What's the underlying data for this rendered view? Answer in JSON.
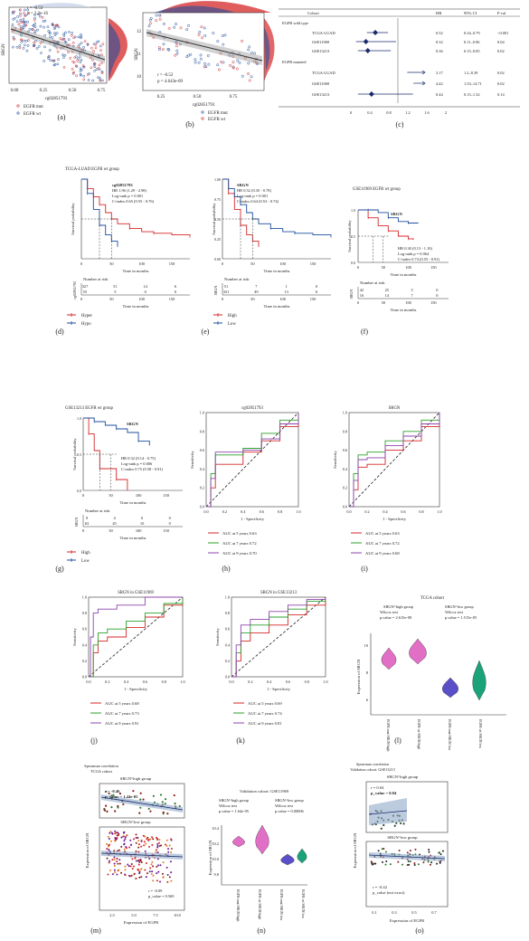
{
  "panel_labels": [
    "(a)",
    "(b)",
    "(c)",
    "(d)",
    "(e)",
    "(f)",
    "(g)",
    "(h)",
    "(i)",
    "(j)",
    "(k)",
    "(l)",
    "(m)",
    "(n)",
    "(o)"
  ],
  "colors": {
    "red": "#d62728",
    "blue": "#1f4e9c",
    "green": "#2ca02c",
    "purple": "#8e44ad",
    "navy": "#1a2b6b",
    "grey": "#666666"
  },
  "panel_a": {
    "ylabel": "SRGN",
    "xlabel": "cg02851793",
    "stats": [
      "r = -0.53",
      "p < 2.2e-16"
    ],
    "xticks": [
      "0.00",
      "0.25",
      "0.50",
      "0.75"
    ],
    "legend": [
      "EGFR mut",
      "EGFR wt"
    ]
  },
  "panel_b": {
    "ylabel": "SRGN",
    "xlabel": "cg02851793",
    "stats": [
      "r = -0.52",
      "p = 4.643e-09"
    ],
    "xticks": [
      "0.25",
      "0.50",
      "0.75"
    ],
    "yticks": [
      "10",
      "11",
      "12"
    ],
    "legend": [
      "EGFR mut",
      "EGFR wt"
    ]
  },
  "panel_c": {
    "header": [
      "Cohort",
      "HR",
      "95% CI",
      "P val"
    ],
    "groups": [
      "EGFR wild type",
      "EGFR mutated"
    ],
    "rows": [
      {
        "cohort": "TCGA-LUAD",
        "hr": "0.52",
        "ci": "0.34–0.79",
        "p": "<0.001"
      },
      {
        "cohort": "GSE11969",
        "hr": "0.32",
        "ci": "0.11–0.96",
        "p": "0.04"
      },
      {
        "cohort": "GSE13213",
        "hr": "0.36",
        "ci": "0.15–0.85",
        "p": "0.02"
      },
      {
        "cohort": "TCGA-LUAD",
        "hr": "3.17",
        "ci": "1.2–8.39",
        "p": "0.02"
      },
      {
        "cohort": "GSE11969",
        "hr": "4.42",
        "ci": "1.33–14.71",
        "p": "0.02"
      },
      {
        "cohort": "GSE13213",
        "hr": "0.44",
        "ci": "0.15–1.32",
        "p": "0.14"
      }
    ],
    "xticks": [
      "0",
      "0.4",
      "0.8",
      "1.2",
      "1.6",
      "2"
    ]
  },
  "panel_d": {
    "title": "TCGA-LUAD EGFR wt group",
    "name": "cg02851793",
    "ylabel": "Survival probability",
    "xlabel": "Time in months",
    "stats": [
      "HR 1.96 (1.29 - 2.98)",
      "Log-rank p = 0.001",
      "C-index 0.65 (0.55 - 0.76)"
    ],
    "risk_title": "Number at risk",
    "risk_label": "cg02851793",
    "risk": [
      [
        "327",
        "51",
        "14",
        "6"
      ],
      [
        "55",
        "5",
        "0",
        "0"
      ]
    ],
    "xticks": [
      "0",
      "50",
      "100",
      "150"
    ],
    "legend": [
      "Hyper",
      "Hypo"
    ]
  },
  "panel_e": {
    "name": "SRGN",
    "ylabel": "Survival probability",
    "xlabel": "Time in months",
    "stats": [
      "HR 0.52 (0.35 - 0.78)",
      "Log-rank p = 0.001",
      "C-index 0.64 (0.53 - 0.74)"
    ],
    "yticks": [
      "0.00",
      "0.25",
      "0.50",
      "0.75",
      "1.00"
    ],
    "risk_title": "Number at risk",
    "risk_label": "SRGN",
    "risk": [
      [
        "51",
        "7",
        "1",
        "0"
      ],
      [
        "331",
        "49",
        "13",
        "6"
      ]
    ],
    "xticks": [
      "0",
      "50",
      "100",
      "150"
    ],
    "legend": [
      "High",
      "Low"
    ]
  },
  "panel_f": {
    "title": "GSE11969 EGFR wt group",
    "name": "SRGN",
    "ylabel": "Survival probability",
    "xlabel": "Time in months",
    "stats": [
      "HR 0.30 (0.13 - 1.10)",
      "Log-rank p = 0.064",
      "C-index 0.74 (0.55 - 0.91)"
    ],
    "yticks": [
      "0.0",
      "0.5",
      "1.0"
    ],
    "risk_title": "Number at risk",
    "risk_label": "SRGN",
    "risk": [
      [
        "42",
        "25",
        "5",
        "0"
      ],
      [
        "16",
        "14",
        "7",
        "0"
      ]
    ],
    "xticks": [
      "0",
      "50",
      "100",
      "150"
    ]
  },
  "panel_g": {
    "title": "GSE13213 EGFR wt group",
    "name": "SRGN",
    "ylabel": "Survival probability",
    "xlabel": "Time in months",
    "stats": [
      "HR 0.32 (0.14 - 0.75)",
      "Log-rank p = 0.006",
      "C-index 0.75 (0.58 - 0.91)"
    ],
    "yticks": [
      "0.0",
      "0.5",
      "1.0"
    ],
    "risk_title": "Number at risk",
    "risk_label": "SRGN",
    "risk": [
      [
        "9",
        "4",
        "0",
        "0"
      ],
      [
        "63",
        "45",
        "10",
        "0"
      ]
    ],
    "xticks": [
      "0",
      "50",
      "100",
      "150"
    ],
    "legend": [
      "High",
      "Low"
    ]
  },
  "roc_common": {
    "xlabel": "1 - Specificity",
    "ylabel": "Sensitivity",
    "ticks": [
      "0.0",
      "0.2",
      "0.4",
      "0.6",
      "0.8",
      "1.0"
    ]
  },
  "panel_h": {
    "title": "cg02851793",
    "legend": [
      "AUC at 5 years 0.63",
      "AUC at 7 years 0.72",
      "AUC at 9 years 0.70"
    ]
  },
  "panel_i": {
    "title": "SRGN",
    "legend": [
      "AUC at 5 years 0.63",
      "AUC at 7 years 0.72",
      "AUC at 9 years 0.68"
    ]
  },
  "panel_j": {
    "title": "SRGN in GSE11969",
    "legend": [
      "AUC at 5 years 0.68",
      "AUC at 7 years 0.73",
      "AUC at 9 years 0.91"
    ]
  },
  "panel_k": {
    "title": "SRGN in GSE13213",
    "legend": [
      "AUC at 5 years 0.69",
      "AUC at 7 years 0.74",
      "AUC at 9 years 0.81"
    ]
  },
  "panel_l": {
    "title": "TCGA cohort",
    "g1": [
      "SRGN^high group",
      "Wilcox test",
      "p.value = 2.615e-08"
    ],
    "g2": [
      "SRGN^low group",
      "Wilcox test",
      "p.value = 1.515e-05"
    ],
    "ylabel": "Expression of SRGN",
    "yticks": [
      "6",
      "8",
      "10"
    ],
    "xcats": [
      "EGFR mut SRGN high",
      "EGFR wt SRGN high",
      "EGFR mut SRGN low",
      "EGFR wt SRGN low"
    ]
  },
  "panel_m": {
    "header": [
      "Spearman correlation",
      "TCGA cohort"
    ],
    "sub1": "SRGN^high group",
    "stats1": [
      "r = -0.46",
      "p_value = 1.44e-05"
    ],
    "sub2": "SRGN^low group",
    "stats2": [
      "r = -0.09",
      "p_value = 0.569"
    ],
    "ylabel": "Expression of SRGN",
    "xlabel": "Expression of EGFR",
    "xticks": [
      "2.5",
      "5.0",
      "7.5",
      "10.0"
    ]
  },
  "panel_n": {
    "title": "Validation cohort: GSE11969",
    "g1": [
      "SRGN^high group",
      "Wilcox test",
      "p.value = 1.64e-05"
    ],
    "g2": [
      "SRGN^low group",
      "Wilcox test",
      "p.value = 0.00006"
    ],
    "ylabel": "Expression of SRGN",
    "yticks": [
      "9.8",
      "10.0",
      "10.2",
      "10.4"
    ],
    "xcats": [
      "EGFR mut SRGN high",
      "EGFR wt SRGN high",
      "EGFR mut SRGN low",
      "EGFR wt SRGN low"
    ]
  },
  "panel_o": {
    "header": [
      "Spearman correlation",
      "Validation cohort: GSE13213"
    ],
    "sub1": "SRGN^high group",
    "stats1": [
      "r = 0.04",
      "p_value = 0.84"
    ],
    "sub2": "SRGN^low group",
    "stats2": [
      "r = -0.42",
      "p_value (not exact)"
    ],
    "ylabel": "Expression of SRGN",
    "xlabel": "Expression of EGFR",
    "xticks": [
      "0.1",
      "0.3",
      "0.5",
      "0.7"
    ]
  },
  "chart_data": [
    {
      "type": "scatter",
      "panel": "a",
      "xlabel": "cg02851793",
      "ylabel": "SRGN",
      "series": [
        {
          "name": "EGFR mut"
        },
        {
          "name": "EGFR wt"
        }
      ],
      "trend_slope": "negative"
    },
    {
      "type": "scatter",
      "panel": "b",
      "xlabel": "cg02851793",
      "ylabel": "SRGN",
      "series": [
        {
          "name": "EGFR mut"
        },
        {
          "name": "EGFR wt"
        }
      ],
      "trend_slope": "negative"
    },
    {
      "type": "table",
      "panel": "c",
      "columns": [
        "Cohort",
        "HR",
        "95% CI",
        "P val"
      ],
      "hr": [
        0.52,
        0.32,
        0.36,
        3.17,
        4.42,
        0.44
      ],
      "ci_low": [
        0.34,
        0.11,
        0.15,
        1.2,
        1.33,
        0.15
      ],
      "ci_high": [
        0.79,
        0.96,
        0.85,
        8.39,
        14.71,
        1.32
      ]
    },
    {
      "type": "line",
      "panel": "d",
      "series": [
        {
          "name": "Hyper",
          "x": [
            0,
            10,
            20,
            30,
            40,
            50,
            60,
            80,
            100,
            120,
            150,
            180
          ],
          "y": [
            1,
            0.88,
            0.78,
            0.68,
            0.58,
            0.5,
            0.44,
            0.38,
            0.34,
            0.32,
            0.3,
            0.28
          ]
        },
        {
          "name": "Hypo",
          "x": [
            0,
            10,
            20,
            30,
            40,
            50,
            60
          ],
          "y": [
            1,
            0.82,
            0.62,
            0.42,
            0.3,
            0.22,
            0.15
          ]
        }
      ]
    },
    {
      "type": "line",
      "panel": "e",
      "series": [
        {
          "name": "High",
          "x": [
            0,
            10,
            20,
            30,
            40,
            50,
            60
          ],
          "y": [
            1,
            0.82,
            0.62,
            0.42,
            0.3,
            0.22,
            0.15
          ]
        },
        {
          "name": "Low",
          "x": [
            0,
            10,
            20,
            30,
            40,
            50,
            60,
            80,
            100,
            120,
            150,
            180
          ],
          "y": [
            1,
            0.88,
            0.78,
            0.68,
            0.58,
            0.5,
            0.44,
            0.38,
            0.34,
            0.32,
            0.3,
            0.28
          ]
        }
      ]
    },
    {
      "type": "line",
      "panel": "f",
      "series": [
        {
          "x": [
            0,
            20,
            40,
            60,
            80,
            100,
            110
          ],
          "y": [
            1,
            0.85,
            0.7,
            0.6,
            0.5,
            0.45,
            0.43
          ]
        },
        {
          "x": [
            0,
            20,
            40,
            60,
            80,
            100,
            120
          ],
          "y": [
            1,
            1,
            0.95,
            0.85,
            0.78,
            0.75,
            0.75
          ]
        }
      ]
    },
    {
      "type": "line",
      "panel": "g",
      "series": [
        {
          "name": "High",
          "x": [
            0,
            10,
            20,
            30,
            40,
            60,
            80
          ],
          "y": [
            1,
            0.78,
            0.55,
            0.3,
            0.3,
            0.15,
            0.0
          ]
        },
        {
          "name": "Low",
          "x": [
            0,
            20,
            40,
            60,
            80,
            100,
            120
          ],
          "y": [
            1,
            0.95,
            0.9,
            0.85,
            0.8,
            0.68,
            0.62
          ]
        }
      ]
    },
    {
      "type": "line",
      "panel": "h",
      "series": [
        {
          "name": "AUC at 5 years 0.63",
          "x": [
            0,
            0.05,
            0.1,
            0.2,
            0.4,
            0.6,
            0.8,
            1
          ],
          "y": [
            0,
            0.2,
            0.45,
            0.45,
            0.58,
            0.7,
            0.85,
            1
          ]
        },
        {
          "name": "AUC at 7 years 0.72",
          "x": [
            0,
            0.05,
            0.1,
            0.2,
            0.4,
            0.6,
            0.8,
            1
          ],
          "y": [
            0,
            0.35,
            0.55,
            0.55,
            0.62,
            0.78,
            0.92,
            1
          ]
        },
        {
          "name": "AUC at 9 years 0.70",
          "x": [
            0,
            0.05,
            0.1,
            0.2,
            0.4,
            0.6,
            0.8,
            1
          ],
          "y": [
            0,
            0.3,
            0.58,
            0.58,
            0.6,
            0.72,
            0.88,
            1
          ]
        }
      ]
    },
    {
      "type": "line",
      "panel": "i",
      "series": [
        {
          "name": "AUC at 5 years 0.63",
          "x": [
            0,
            0.05,
            0.1,
            0.2,
            0.4,
            0.6,
            0.8,
            1
          ],
          "y": [
            0,
            0.18,
            0.42,
            0.45,
            0.6,
            0.7,
            0.85,
            1
          ]
        },
        {
          "name": "AUC at 7 years 0.72",
          "x": [
            0,
            0.05,
            0.1,
            0.2,
            0.4,
            0.6,
            0.8,
            1
          ],
          "y": [
            0,
            0.35,
            0.55,
            0.58,
            0.7,
            0.8,
            0.92,
            1
          ]
        },
        {
          "name": "AUC at 9 years 0.68",
          "x": [
            0,
            0.05,
            0.1,
            0.2,
            0.4,
            0.6,
            0.8,
            1
          ],
          "y": [
            0,
            0.28,
            0.5,
            0.52,
            0.65,
            0.75,
            0.88,
            1
          ]
        }
      ]
    },
    {
      "type": "line",
      "panel": "j",
      "series": [
        {
          "name": "AUC at 5 years 0.68",
          "x": [
            0,
            0.05,
            0.1,
            0.2,
            0.4,
            0.6,
            0.8,
            1
          ],
          "y": [
            0,
            0.3,
            0.45,
            0.5,
            0.62,
            0.75,
            0.9,
            1
          ]
        },
        {
          "name": "AUC at 7 years 0.73",
          "x": [
            0,
            0.05,
            0.1,
            0.2,
            0.4,
            0.6,
            0.8,
            1
          ],
          "y": [
            0,
            0.4,
            0.55,
            0.6,
            0.7,
            0.8,
            0.92,
            1
          ]
        },
        {
          "name": "AUC at 9 years 0.91",
          "x": [
            0,
            0.02,
            0.05,
            0.1,
            0.3,
            0.6,
            1
          ],
          "y": [
            0,
            0.5,
            0.8,
            0.85,
            0.9,
            1,
            1
          ]
        }
      ]
    },
    {
      "type": "line",
      "panel": "k",
      "series": [
        {
          "name": "AUC at 5 years 0.69",
          "x": [
            0,
            0.05,
            0.1,
            0.2,
            0.4,
            0.6,
            0.8,
            1
          ],
          "y": [
            0,
            0.2,
            0.45,
            0.55,
            0.65,
            0.78,
            0.9,
            1
          ]
        },
        {
          "name": "AUC at 7 years 0.74",
          "x": [
            0,
            0.05,
            0.1,
            0.2,
            0.4,
            0.6,
            0.8,
            1
          ],
          "y": [
            0,
            0.3,
            0.55,
            0.65,
            0.75,
            0.85,
            0.95,
            1
          ]
        },
        {
          "name": "AUC at 9 years 0.81",
          "x": [
            0,
            0.05,
            0.1,
            0.2,
            0.4,
            0.6,
            0.8,
            1
          ],
          "y": [
            0,
            0.4,
            0.65,
            0.72,
            0.82,
            0.9,
            0.97,
            1
          ]
        }
      ]
    }
  ]
}
